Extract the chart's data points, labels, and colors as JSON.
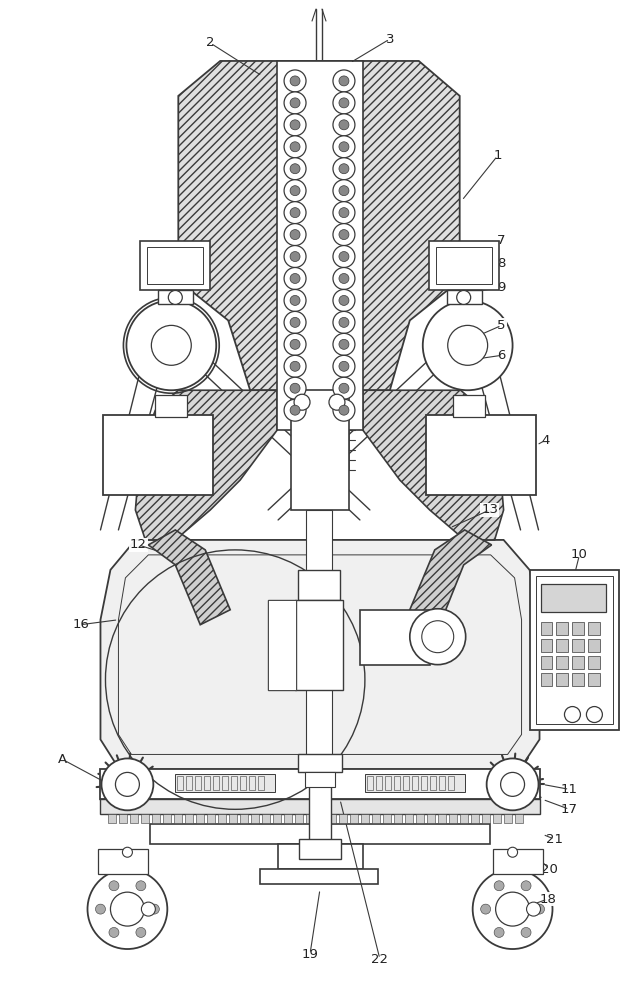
{
  "bg_color": "#ffffff",
  "line_color": "#3a3a3a",
  "fig_width": 6.39,
  "fig_height": 10.0,
  "label_fontsize": 9.5
}
